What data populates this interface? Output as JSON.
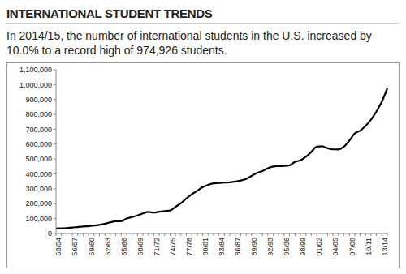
{
  "chart_data": {
    "type": "line",
    "title": "INTERNATIONAL STUDENT TRENDS",
    "subtitle": "In 2014/15, the number of international students in the U.S. increased by 10.0% to a record high of 974,926 students.",
    "categories": [
      "53/54",
      null,
      null,
      "56/57",
      null,
      null,
      "59/60",
      null,
      null,
      "62/63",
      null,
      null,
      "65/66",
      null,
      null,
      "68/69",
      null,
      null,
      "71/72",
      null,
      null,
      "74/75",
      null,
      null,
      "77/78",
      null,
      null,
      "80/81",
      null,
      null,
      "83/84",
      null,
      null,
      "86/87",
      null,
      null,
      "89/90",
      null,
      null,
      "92/93",
      null,
      null,
      "95/96",
      null,
      null,
      "98/99",
      null,
      null,
      "01/02",
      null,
      null,
      "04/05",
      null,
      null,
      "07/08",
      null,
      null,
      "10/11",
      null,
      null,
      "13/14",
      null
    ],
    "values": [
      33675,
      34232,
      36494,
      40666,
      43391,
      47245,
      48486,
      53107,
      58086,
      64705,
      74814,
      82045,
      82709,
      100262,
      110315,
      121362,
      134959,
      144708,
      140126,
      146097,
      151066,
      154580,
      179344,
      203068,
      235509,
      263938,
      286343,
      311882,
      326299,
      336985,
      338894,
      342113,
      343777,
      349609,
      356187,
      366354,
      386851,
      407529,
      419585,
      438618,
      449749,
      452635,
      453787,
      457984,
      481280,
      490933,
      514723,
      547867,
      582996,
      586323,
      572509,
      565039,
      564766,
      582984,
      623805,
      671616,
      690923,
      723277,
      764495,
      819644,
      886052,
      974926
    ],
    "color": "#000000",
    "ylim": [
      0,
      1100000
    ],
    "yticks": [
      {
        "value": 0,
        "label": "0"
      },
      {
        "value": 100000,
        "label": "100,000"
      },
      {
        "value": 200000,
        "label": "200,000"
      },
      {
        "value": 300000,
        "label": "300,000"
      },
      {
        "value": 400000,
        "label": "400,000"
      },
      {
        "value": 500000,
        "label": "500,000"
      },
      {
        "value": 600000,
        "label": "600,000"
      },
      {
        "value": 700000,
        "label": "700,000"
      },
      {
        "value": 800000,
        "label": "800,000"
      },
      {
        "value": 900000,
        "label": "900,000"
      },
      {
        "value": 1000000,
        "label": "1,000,000"
      },
      {
        "value": 1100000,
        "label": "1,100,000"
      }
    ],
    "grid": false
  }
}
